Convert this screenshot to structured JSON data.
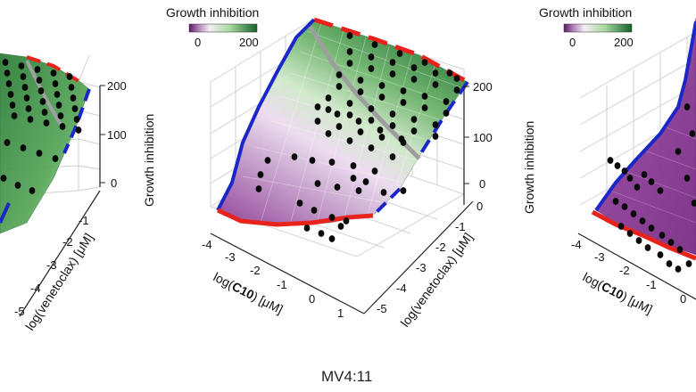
{
  "caption": "MV4:11",
  "chart_data": [
    {
      "type": "surface",
      "panel": "left",
      "zlabel": "Growth inhibition",
      "xlabel_parts": [
        "log(",
        "",
        ") [μM]"
      ],
      "ylabel": "log(venetoclax) [μM]",
      "x_ticks": [],
      "y_ticks": [
        "-1",
        "-2",
        "-3",
        "-4",
        "-5"
      ],
      "z_ticks": [
        "0",
        "100",
        "200"
      ],
      "zlim": [
        0,
        200
      ],
      "legend": null
    },
    {
      "type": "surface",
      "panel": "center",
      "zlabel": "Growth inhibition",
      "xlabel_parts": [
        "log(",
        "C10",
        ") [μM]"
      ],
      "ylabel": "log(venetoclax) [μM]",
      "x_ticks": [
        "-4",
        "-3",
        "-2",
        "-1",
        "0",
        "1"
      ],
      "y_ticks": [
        "0",
        "-1",
        "-2",
        "-3",
        "-4",
        "-5"
      ],
      "z_ticks": [
        "0",
        "100",
        "200"
      ],
      "zlim": [
        0,
        200
      ],
      "legend": {
        "title": "Growth inhibition",
        "ticks": [
          "0",
          "200"
        ],
        "colors": [
          "#6a1b6a",
          "#ffffff",
          "#1e6b2e"
        ]
      }
    },
    {
      "type": "surface",
      "panel": "right",
      "zlabel": "",
      "xlabel_parts": [
        "log(",
        "C10",
        ") [μM]"
      ],
      "ylabel": "",
      "x_ticks": [
        "-4",
        "-3",
        "-2",
        "-1",
        "0"
      ],
      "y_ticks": [],
      "z_ticks": [],
      "zlim": [
        0,
        200
      ],
      "legend": {
        "title": "Growth inhibition",
        "ticks": [
          "0",
          "200"
        ],
        "colors": [
          "#6a1b6a",
          "#ffffff",
          "#1e6b2e"
        ]
      }
    }
  ],
  "colors": {
    "boundary_red": "#e8231c",
    "boundary_blue": "#1b27c8",
    "ridge_gray": "#a0a0a0",
    "points": "#0a0a0a"
  }
}
